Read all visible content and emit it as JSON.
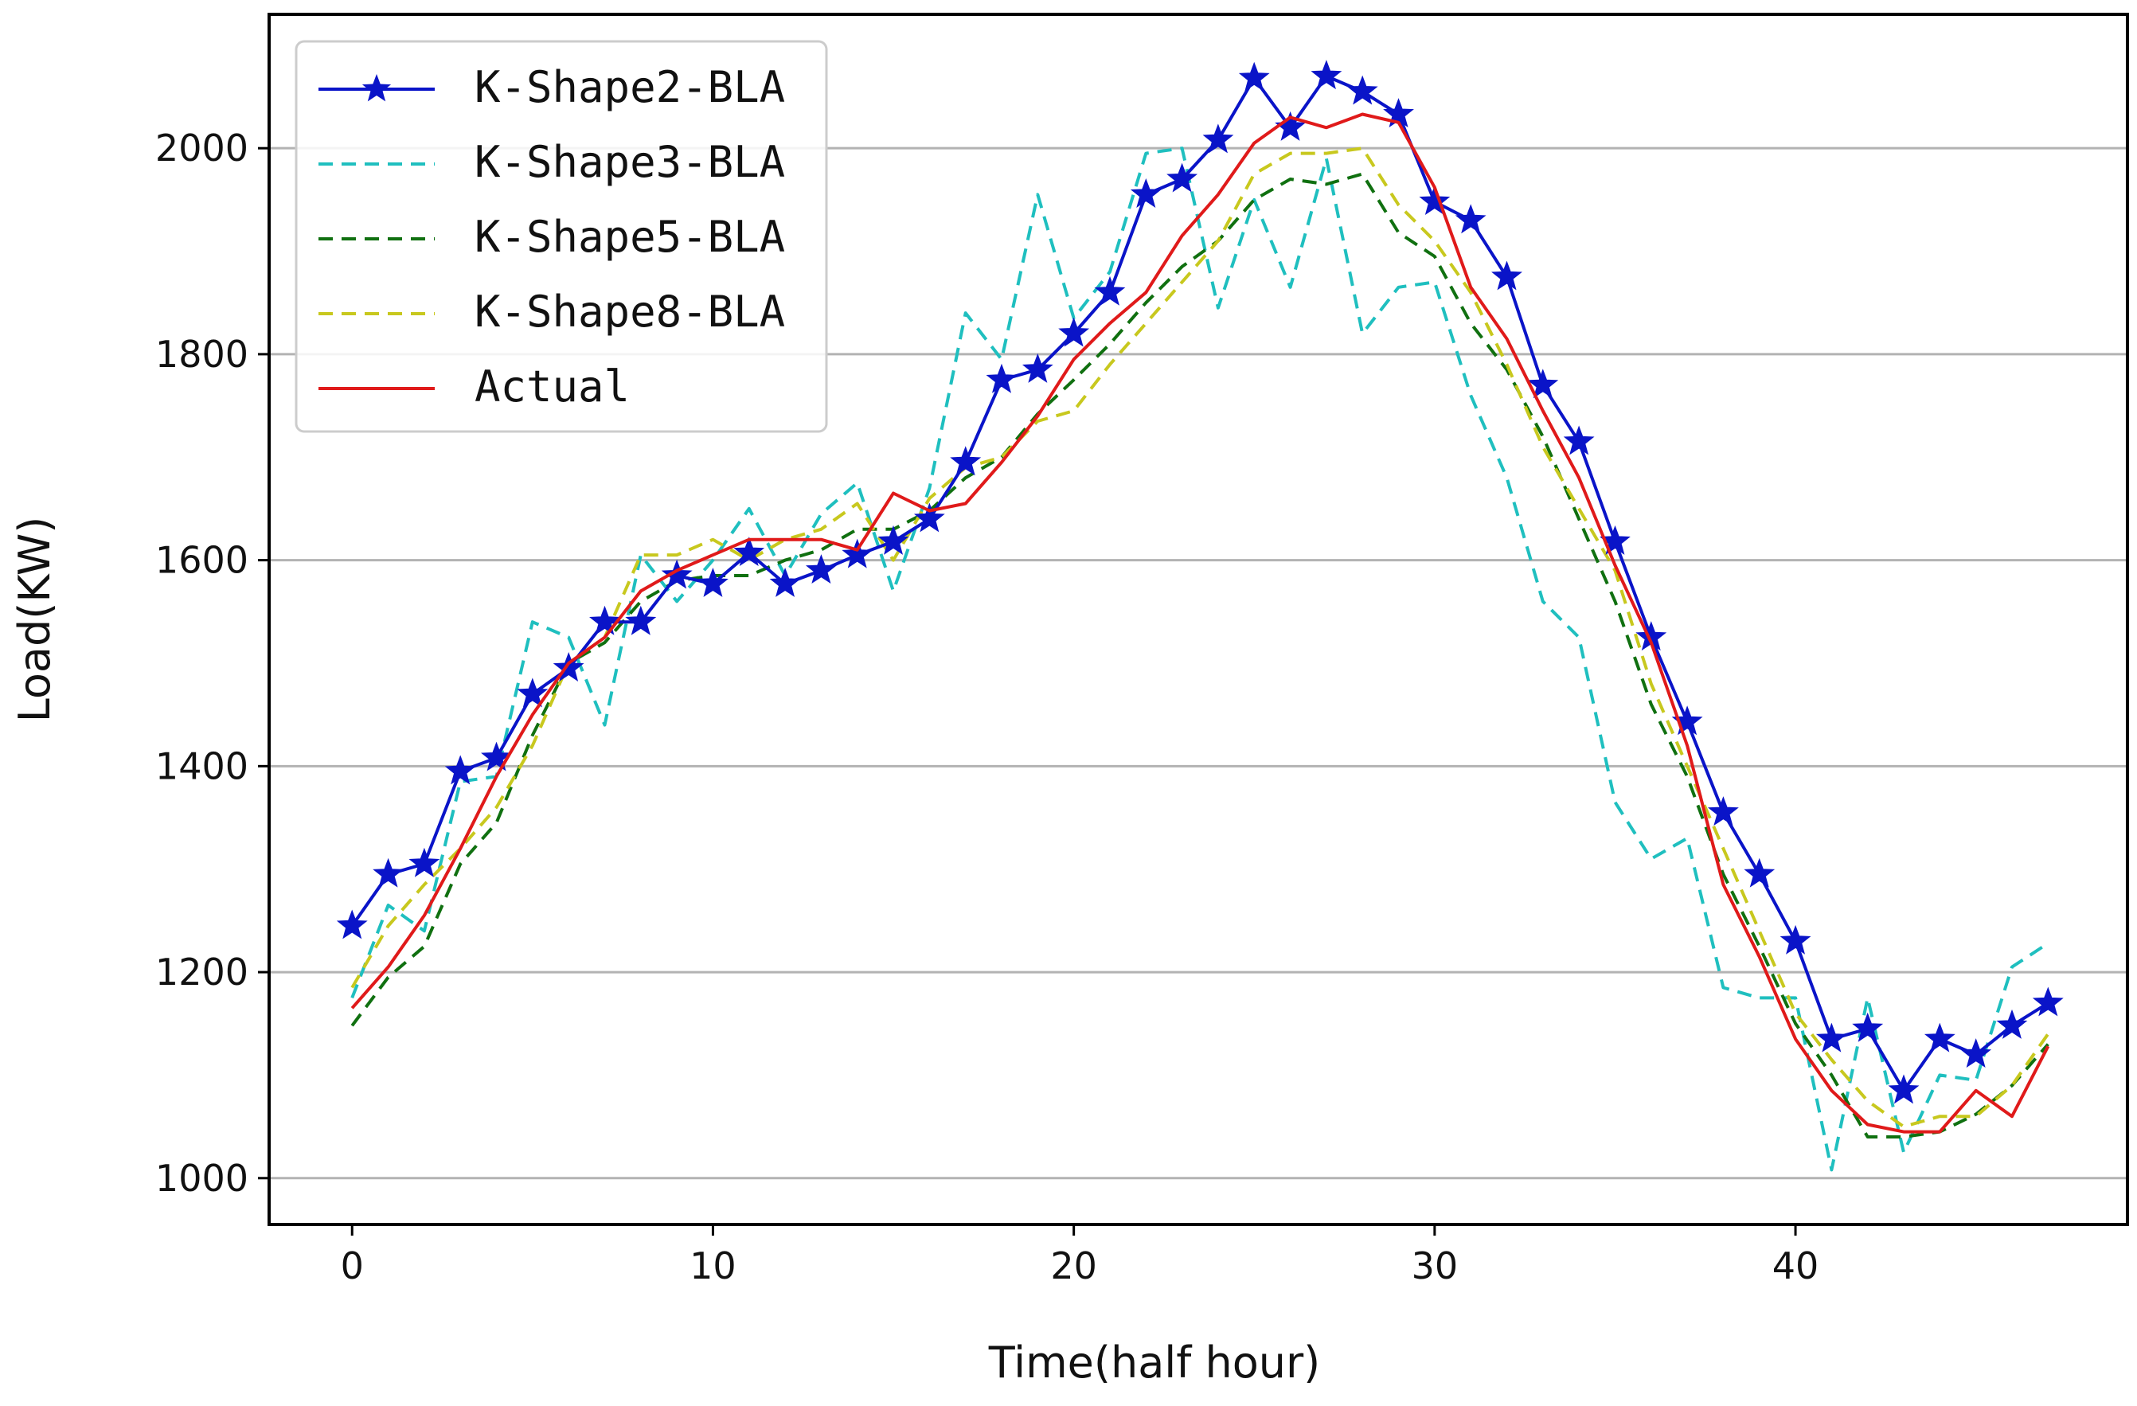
{
  "chart_data": {
    "type": "line",
    "title": "",
    "xlabel": "Time(half hour)",
    "ylabel": "Load(KW)",
    "xlim": [
      -2.3,
      49.2
    ],
    "ylim": [
      955,
      2130
    ],
    "xticks": [
      0,
      10,
      20,
      30,
      40
    ],
    "yticks": [
      1000,
      1200,
      1400,
      1600,
      1800,
      2000
    ],
    "grid": "horizontal",
    "legend_position": "top-left",
    "x": [
      0,
      1,
      2,
      3,
      4,
      5,
      6,
      7,
      8,
      9,
      10,
      11,
      12,
      13,
      14,
      15,
      16,
      17,
      18,
      19,
      20,
      21,
      22,
      23,
      24,
      25,
      26,
      27,
      28,
      29,
      30,
      31,
      32,
      33,
      34,
      35,
      36,
      37,
      38,
      39,
      40,
      41,
      42,
      43,
      44,
      45,
      46,
      47
    ],
    "series": [
      {
        "name": "K-Shape2-BLA",
        "color": "#0a14c8",
        "style": "solid-star",
        "values": [
          1245,
          1295,
          1305,
          1395,
          1408,
          1470,
          1495,
          1540,
          1540,
          1585,
          1577,
          1607,
          1577,
          1590,
          1605,
          1618,
          1640,
          1695,
          1775,
          1785,
          1820,
          1860,
          1955,
          1970,
          2008,
          2068,
          2020,
          2070,
          2055,
          2033,
          1948,
          1930,
          1875,
          1770,
          1715,
          1618,
          1525,
          1443,
          1355,
          1295,
          1230,
          1135,
          1145,
          1085,
          1135,
          1120,
          1148,
          1170
        ]
      },
      {
        "name": "K-Shape3-BLA",
        "color": "#1fbfbf",
        "style": "dashed",
        "values": [
          1175,
          1265,
          1240,
          1385,
          1390,
          1540,
          1525,
          1440,
          1605,
          1560,
          1600,
          1650,
          1585,
          1645,
          1675,
          1570,
          1670,
          1840,
          1795,
          1955,
          1835,
          1880,
          1995,
          2000,
          1845,
          1950,
          1865,
          1990,
          1820,
          1865,
          1870,
          1760,
          1680,
          1560,
          1525,
          1365,
          1310,
          1330,
          1185,
          1175,
          1175,
          1008,
          1175,
          1025,
          1100,
          1095,
          1205,
          1228
        ]
      },
      {
        "name": "K-Shape5-BLA",
        "color": "#107010",
        "style": "dashed",
        "values": [
          1148,
          1195,
          1225,
          1305,
          1345,
          1430,
          1500,
          1520,
          1560,
          1580,
          1585,
          1585,
          1600,
          1610,
          1630,
          1630,
          1648,
          1680,
          1700,
          1742,
          1775,
          1810,
          1850,
          1885,
          1910,
          1950,
          1970,
          1965,
          1975,
          1918,
          1895,
          1830,
          1785,
          1720,
          1640,
          1560,
          1460,
          1390,
          1295,
          1225,
          1150,
          1100,
          1040,
          1040,
          1045,
          1062,
          1090,
          1130
        ]
      },
      {
        "name": "K-Shape8-BLA",
        "color": "#c8c81e",
        "style": "dashed",
        "values": [
          1185,
          1245,
          1285,
          1320,
          1360,
          1420,
          1500,
          1525,
          1605,
          1605,
          1620,
          1600,
          1620,
          1630,
          1655,
          1600,
          1660,
          1690,
          1700,
          1735,
          1745,
          1790,
          1830,
          1870,
          1910,
          1975,
          1995,
          1995,
          2000,
          1945,
          1910,
          1860,
          1790,
          1710,
          1650,
          1590,
          1480,
          1400,
          1320,
          1240,
          1160,
          1115,
          1075,
          1050,
          1060,
          1060,
          1090,
          1140
        ]
      },
      {
        "name": "Actual",
        "color": "#e01a1a",
        "style": "solid",
        "values": [
          1165,
          1205,
          1255,
          1320,
          1390,
          1450,
          1500,
          1525,
          1570,
          1590,
          1605,
          1620,
          1620,
          1620,
          1610,
          1665,
          1648,
          1655,
          1695,
          1740,
          1795,
          1830,
          1860,
          1915,
          1955,
          2005,
          2030,
          2020,
          2033,
          2025,
          1962,
          1865,
          1815,
          1745,
          1680,
          1595,
          1520,
          1420,
          1285,
          1215,
          1135,
          1085,
          1052,
          1045,
          1045,
          1085,
          1060,
          1128
        ]
      }
    ]
  }
}
